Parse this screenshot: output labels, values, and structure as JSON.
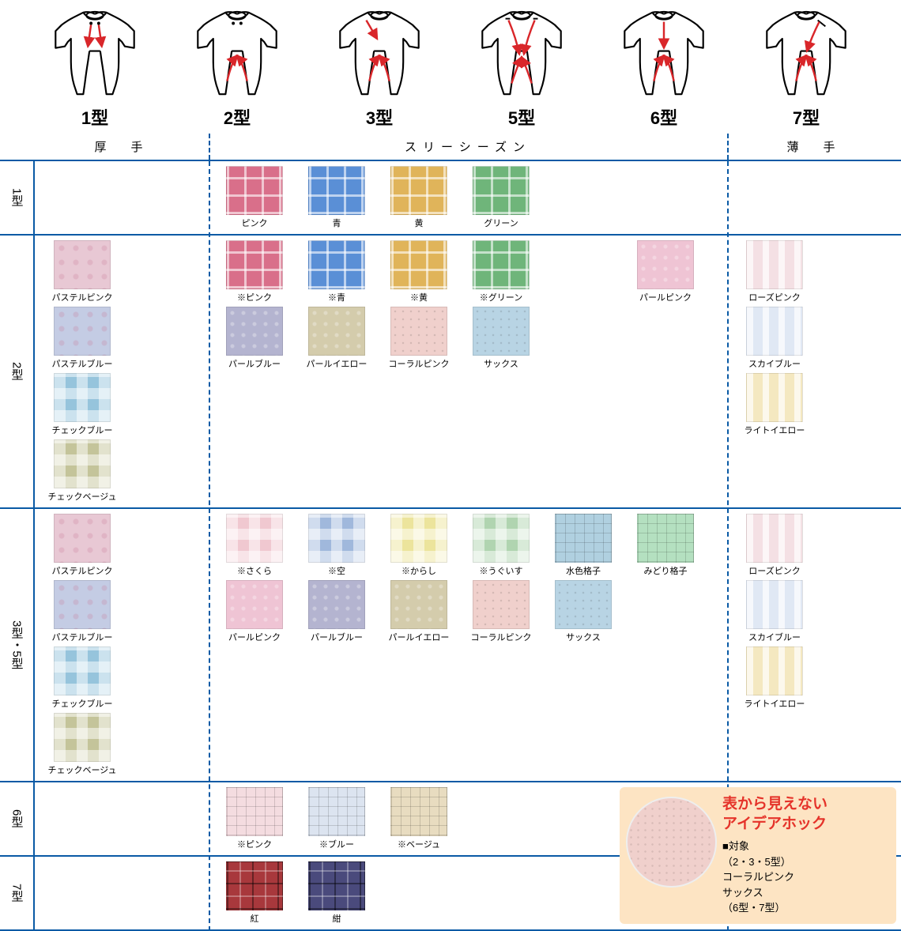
{
  "colors": {
    "rule": "#0a5aa5",
    "dash": "#0a5aa5",
    "arrow": "#d9262a",
    "callout_bg": "#fde4c3",
    "callout_title": "#e5332a"
  },
  "garments": [
    {
      "label": "1型",
      "arrows": "down"
    },
    {
      "label": "2型",
      "arrows": "crotch"
    },
    {
      "label": "3型",
      "arrows": "shoulder-crotch"
    },
    {
      "label": "5型",
      "arrows": "shoulder-long"
    },
    {
      "label": "6型",
      "arrows": "front-crotch"
    },
    {
      "label": "7型",
      "arrows": "diag-crotch"
    }
  ],
  "columns": [
    {
      "key": "atsu",
      "label": "厚　手"
    },
    {
      "key": "three",
      "label": "スリーシーズン"
    },
    {
      "key": "usu",
      "label": "薄　手"
    }
  ],
  "rows": [
    {
      "label": "1型",
      "groups": {
        "atsu": [],
        "three": [
          {
            "label": "ピンク",
            "color": "#d96f8a",
            "pattern": "plaid"
          },
          {
            "label": "青",
            "color": "#5a8fd6",
            "pattern": "plaid"
          },
          {
            "label": "黄",
            "color": "#e0b45a",
            "pattern": "plaid"
          },
          {
            "label": "グリーン",
            "color": "#6fb57a",
            "pattern": "plaid"
          }
        ],
        "usu": []
      }
    },
    {
      "label": "2型",
      "groups": {
        "atsu": [
          {
            "label": "パステルピンク",
            "color": "#e8c8d4",
            "pattern": "floral"
          },
          {
            "label": "パステルブルー",
            "color": "#c4cce4",
            "pattern": "floral"
          },
          {
            "label": "チェックブルー",
            "color": "#96c4dc",
            "pattern": "check"
          },
          {
            "label": "チェックベージュ",
            "color": "#c4c49a",
            "pattern": "check"
          }
        ],
        "three": [
          {
            "label": "※ピンク",
            "color": "#d96f8a",
            "pattern": "plaid"
          },
          {
            "label": "※青",
            "color": "#5a8fd6",
            "pattern": "plaid"
          },
          {
            "label": "※黄",
            "color": "#e0b45a",
            "pattern": "plaid"
          },
          {
            "label": "※グリーン",
            "color": "#6fb57a",
            "pattern": "plaid"
          },
          {
            "label": "",
            "color": "transparent",
            "pattern": "",
            "spacer": true
          },
          {
            "label": "パールピンク",
            "color": "#efc4d4",
            "pattern": "paisley"
          },
          {
            "label": "パールブルー",
            "color": "#b4b4d0",
            "pattern": "paisley"
          },
          {
            "label": "パールイエロー",
            "color": "#d4ccac",
            "pattern": "paisley"
          },
          {
            "label": "コーラルピンク",
            "color": "#f0d0cc",
            "pattern": "dots"
          },
          {
            "label": "サックス",
            "color": "#b8d4e4",
            "pattern": "dots"
          }
        ],
        "usu": [
          {
            "label": "ローズピンク",
            "color": "#f4e0e4",
            "pattern": "stripe"
          },
          {
            "label": "スカイブルー",
            "color": "#e0e8f4",
            "pattern": "stripe"
          },
          {
            "label": "ライトイエロー",
            "color": "#f4e8c0",
            "pattern": "stripe"
          }
        ]
      }
    },
    {
      "label": "3型・5型",
      "groups": {
        "atsu": [
          {
            "label": "パステルピンク",
            "color": "#e8c8d4",
            "pattern": "floral"
          },
          {
            "label": "パステルブルー",
            "color": "#c4cce4",
            "pattern": "floral"
          },
          {
            "label": "チェックブルー",
            "color": "#96c4dc",
            "pattern": "check"
          },
          {
            "label": "チェックベージュ",
            "color": "#c4c49a",
            "pattern": "check"
          }
        ],
        "three": [
          {
            "label": "※さくら",
            "color": "#f0c8d0",
            "pattern": "check"
          },
          {
            "label": "※空",
            "color": "#a0b8dc",
            "pattern": "check"
          },
          {
            "label": "※からし",
            "color": "#ece49c",
            "pattern": "check"
          },
          {
            "label": "※うぐいす",
            "color": "#b0d4b0",
            "pattern": "check"
          },
          {
            "label": "水色格子",
            "color": "#b0d0e0",
            "pattern": "thinplaid"
          },
          {
            "label": "みどり格子",
            "color": "#b4e0c0",
            "pattern": "thinplaid"
          },
          {
            "label": "パールピンク",
            "color": "#efc4d4",
            "pattern": "paisley"
          },
          {
            "label": "パールブルー",
            "color": "#b4b4d0",
            "pattern": "paisley"
          },
          {
            "label": "パールイエロー",
            "color": "#d4ccac",
            "pattern": "paisley"
          },
          {
            "label": "コーラルピンク",
            "color": "#f0d0cc",
            "pattern": "dots"
          },
          {
            "label": "サックス",
            "color": "#b8d4e4",
            "pattern": "dots"
          }
        ],
        "usu": [
          {
            "label": "ローズピンク",
            "color": "#f4e0e4",
            "pattern": "stripe"
          },
          {
            "label": "スカイブルー",
            "color": "#e0e8f4",
            "pattern": "stripe"
          },
          {
            "label": "ライトイエロー",
            "color": "#f4e8c0",
            "pattern": "stripe"
          }
        ]
      }
    },
    {
      "label": "6型",
      "groups": {
        "atsu": [],
        "three": [
          {
            "label": "※ピンク",
            "color": "#f4dce0",
            "pattern": "thinplaid"
          },
          {
            "label": "※ブルー",
            "color": "#dce4f0",
            "pattern": "thinplaid"
          },
          {
            "label": "※ベージュ",
            "color": "#e8dcc0",
            "pattern": "thinplaid"
          }
        ],
        "usu": []
      }
    },
    {
      "label": "7型",
      "groups": {
        "atsu": [],
        "three": [
          {
            "label": "紅",
            "color": "#a8383c",
            "pattern": "tartan"
          },
          {
            "label": "紺",
            "color": "#4a4a7c",
            "pattern": "tartan"
          }
        ],
        "usu": []
      }
    }
  ],
  "callout": {
    "title_l1": "表から見えない",
    "title_l2": "アイデアホック",
    "body_l1": "■対象",
    "body_l2": "（2・3・5型）",
    "body_l3": "コーラルピンク",
    "body_l4": "サックス",
    "body_l5": "（6型・7型）"
  }
}
